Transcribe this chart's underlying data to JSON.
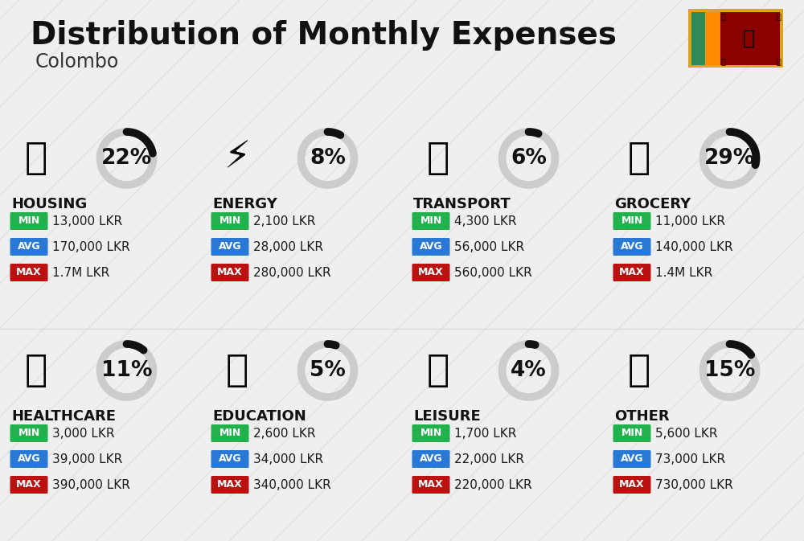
{
  "title": "Distribution of Monthly Expenses",
  "subtitle": "Colombo",
  "bg_color": "#efefef",
  "categories": [
    {
      "name": "HOUSING",
      "pct": 22,
      "min": "13,000 LKR",
      "avg": "170,000 LKR",
      "max": "1.7M LKR",
      "row": 0,
      "col": 0
    },
    {
      "name": "ENERGY",
      "pct": 8,
      "min": "2,100 LKR",
      "avg": "28,000 LKR",
      "max": "280,000 LKR",
      "row": 0,
      "col": 1
    },
    {
      "name": "TRANSPORT",
      "pct": 6,
      "min": "4,300 LKR",
      "avg": "56,000 LKR",
      "max": "560,000 LKR",
      "row": 0,
      "col": 2
    },
    {
      "name": "GROCERY",
      "pct": 29,
      "min": "11,000 LKR",
      "avg": "140,000 LKR",
      "max": "1.4M LKR",
      "row": 0,
      "col": 3
    },
    {
      "name": "HEALTHCARE",
      "pct": 11,
      "min": "3,000 LKR",
      "avg": "39,000 LKR",
      "max": "390,000 LKR",
      "row": 1,
      "col": 0
    },
    {
      "name": "EDUCATION",
      "pct": 5,
      "min": "2,600 LKR",
      "avg": "34,000 LKR",
      "max": "340,000 LKR",
      "row": 1,
      "col": 1
    },
    {
      "name": "LEISURE",
      "pct": 4,
      "min": "1,700 LKR",
      "avg": "22,000 LKR",
      "max": "220,000 LKR",
      "row": 1,
      "col": 2
    },
    {
      "name": "OTHER",
      "pct": 15,
      "min": "5,600 LKR",
      "avg": "73,000 LKR",
      "max": "730,000 LKR",
      "row": 1,
      "col": 3
    }
  ],
  "min_color": "#22b14c",
  "avg_color": "#2979d4",
  "max_color": "#bb1111",
  "arc_color_filled": "#111111",
  "arc_color_empty": "#cccccc",
  "title_fontsize": 28,
  "subtitle_fontsize": 17,
  "cat_fontsize": 13,
  "pct_fontsize": 19,
  "val_fontsize": 11,
  "badge_label_fontsize": 9
}
